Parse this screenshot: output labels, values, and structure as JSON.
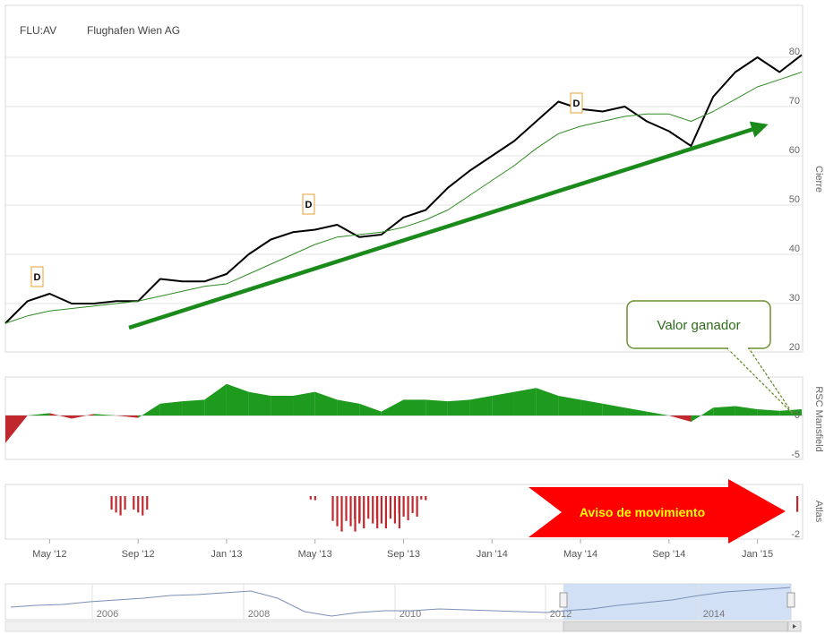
{
  "header": {
    "ticker": "FLU:AV",
    "company": "Flughafen Wien AG"
  },
  "panels": {
    "price": {
      "axis_label": "Cierre",
      "ticks": [
        "80",
        "70",
        "60",
        "50",
        "40",
        "30",
        "20"
      ]
    },
    "rsc": {
      "axis_label": "RSC Mansfield",
      "ticks": [
        "0",
        "-5"
      ]
    },
    "atlas": {
      "axis_label": "Atlas",
      "ticks": [
        "-2"
      ]
    }
  },
  "x_axis": {
    "labels": [
      "May '12",
      "Sep '12",
      "Jan '13",
      "May '13",
      "Sep '13",
      "Jan '14",
      "May '14",
      "Sep '14",
      "Jan '15"
    ]
  },
  "navigator": {
    "labels": [
      "2006",
      "2008",
      "2010",
      "2012",
      "2014"
    ]
  },
  "annotations": {
    "callout": "Valor ganador",
    "banner": "Aviso de movimiento",
    "dividend_marker": "D"
  },
  "colors": {
    "price_line": "#000000",
    "moving_average": "#2e8b22",
    "trend_arrow": "#1a8a1a",
    "rsc_positive": "#1e9a1e",
    "rsc_negative": "#c0282d",
    "atlas_bars": "#c0282d",
    "banner_fill": "#ff0000",
    "banner_text": "#ffff00",
    "marker_border": "#e8a030",
    "navigator_selection": "#c9daf2"
  },
  "chart_data": [
    {
      "type": "line",
      "panel": "price",
      "ylabel": "Cierre",
      "ylim": [
        20,
        82
      ],
      "x": [
        "2012-03",
        "2012-04",
        "2012-05",
        "2012-06",
        "2012-07",
        "2012-08",
        "2012-09",
        "2012-10",
        "2012-11",
        "2012-12",
        "2013-01",
        "2013-02",
        "2013-03",
        "2013-04",
        "2013-05",
        "2013-06",
        "2013-07",
        "2013-08",
        "2013-09",
        "2013-10",
        "2013-11",
        "2013-12",
        "2014-01",
        "2014-02",
        "2014-03",
        "2014-04",
        "2014-05",
        "2014-06",
        "2014-07",
        "2014-08",
        "2014-09",
        "2014-10",
        "2014-11",
        "2014-12",
        "2015-01",
        "2015-02",
        "2015-03"
      ],
      "series": [
        {
          "values": [
            26,
            30.5,
            32,
            30,
            30,
            30.5,
            30.5,
            35,
            34.5,
            34.5,
            36,
            40,
            43,
            44.5,
            45,
            46,
            43.5,
            44,
            47.5,
            49,
            53.5,
            57,
            60,
            63,
            67,
            71,
            69.5,
            69,
            70,
            67,
            65,
            62,
            72,
            77,
            80,
            77,
            80.5
          ]
        },
        {
          "values": [
            26,
            27.5,
            28.5,
            29,
            29.5,
            30,
            30.5,
            31.5,
            32.5,
            33.5,
            34,
            36,
            38,
            40,
            42,
            43.5,
            44,
            44.5,
            45.5,
            47,
            49,
            52,
            55,
            58,
            61.5,
            64.5,
            66,
            67,
            68,
            68.5,
            68.5,
            67,
            69,
            71.5,
            74,
            75.5,
            77
          ]
        }
      ]
    },
    {
      "type": "area",
      "panel": "rsc",
      "ylabel": "RSC Mansfield",
      "x": [
        "2012-03",
        "2012-04",
        "2012-05",
        "2012-06",
        "2012-07",
        "2012-08",
        "2012-09",
        "2012-10",
        "2012-11",
        "2012-12",
        "2013-01",
        "2013-02",
        "2013-03",
        "2013-04",
        "2013-05",
        "2013-06",
        "2013-07",
        "2013-08",
        "2013-09",
        "2013-10",
        "2013-11",
        "2013-12",
        "2014-01",
        "2014-02",
        "2014-03",
        "2014-04",
        "2014-05",
        "2014-06",
        "2014-07",
        "2014-08",
        "2014-09",
        "2014-10",
        "2014-11",
        "2014-12",
        "2015-01",
        "2015-02",
        "2015-03"
      ],
      "values": [
        -3.5,
        0,
        0.3,
        -0.4,
        0.2,
        0,
        -0.3,
        1.5,
        1.8,
        2,
        4,
        3,
        2.5,
        2.5,
        3,
        2,
        1.5,
        0.5,
        2,
        2,
        1.8,
        2,
        2.5,
        3,
        3.5,
        2.5,
        2,
        1.5,
        1,
        0.5,
        0,
        -0.8,
        1,
        1.2,
        0.8,
        0.6,
        0.8
      ]
    },
    {
      "type": "bar",
      "panel": "atlas",
      "ylabel": "Atlas",
      "x": [
        "2012-03",
        "2012-04",
        "2012-05",
        "2012-06",
        "2012-07",
        "2012-08",
        "2012-09",
        "2012-10",
        "2012-11",
        "2012-12",
        "2013-01",
        "2013-02",
        "2013-03",
        "2013-04",
        "2013-05",
        "2013-06",
        "2013-07",
        "2013-08",
        "2013-09",
        "2013-10",
        "2013-11",
        "2013-12",
        "2014-01",
        "2014-02",
        "2014-03",
        "2014-04",
        "2014-05",
        "2014-06",
        "2014-07",
        "2014-08",
        "2014-09",
        "2014-10",
        "2014-11",
        "2014-12",
        "2015-01",
        "2015-02",
        "2015-03"
      ],
      "values": [
        -0.4,
        0,
        0,
        0,
        0,
        -1.2,
        -1.2,
        0,
        0,
        0,
        0,
        0,
        0,
        0,
        -0.3,
        -2.2,
        -2,
        -2,
        -1.5,
        -0.3,
        0,
        0,
        0,
        0,
        0,
        0,
        0,
        0,
        0,
        0,
        0,
        0,
        0,
        0,
        0,
        0,
        -1.4
      ]
    }
  ]
}
